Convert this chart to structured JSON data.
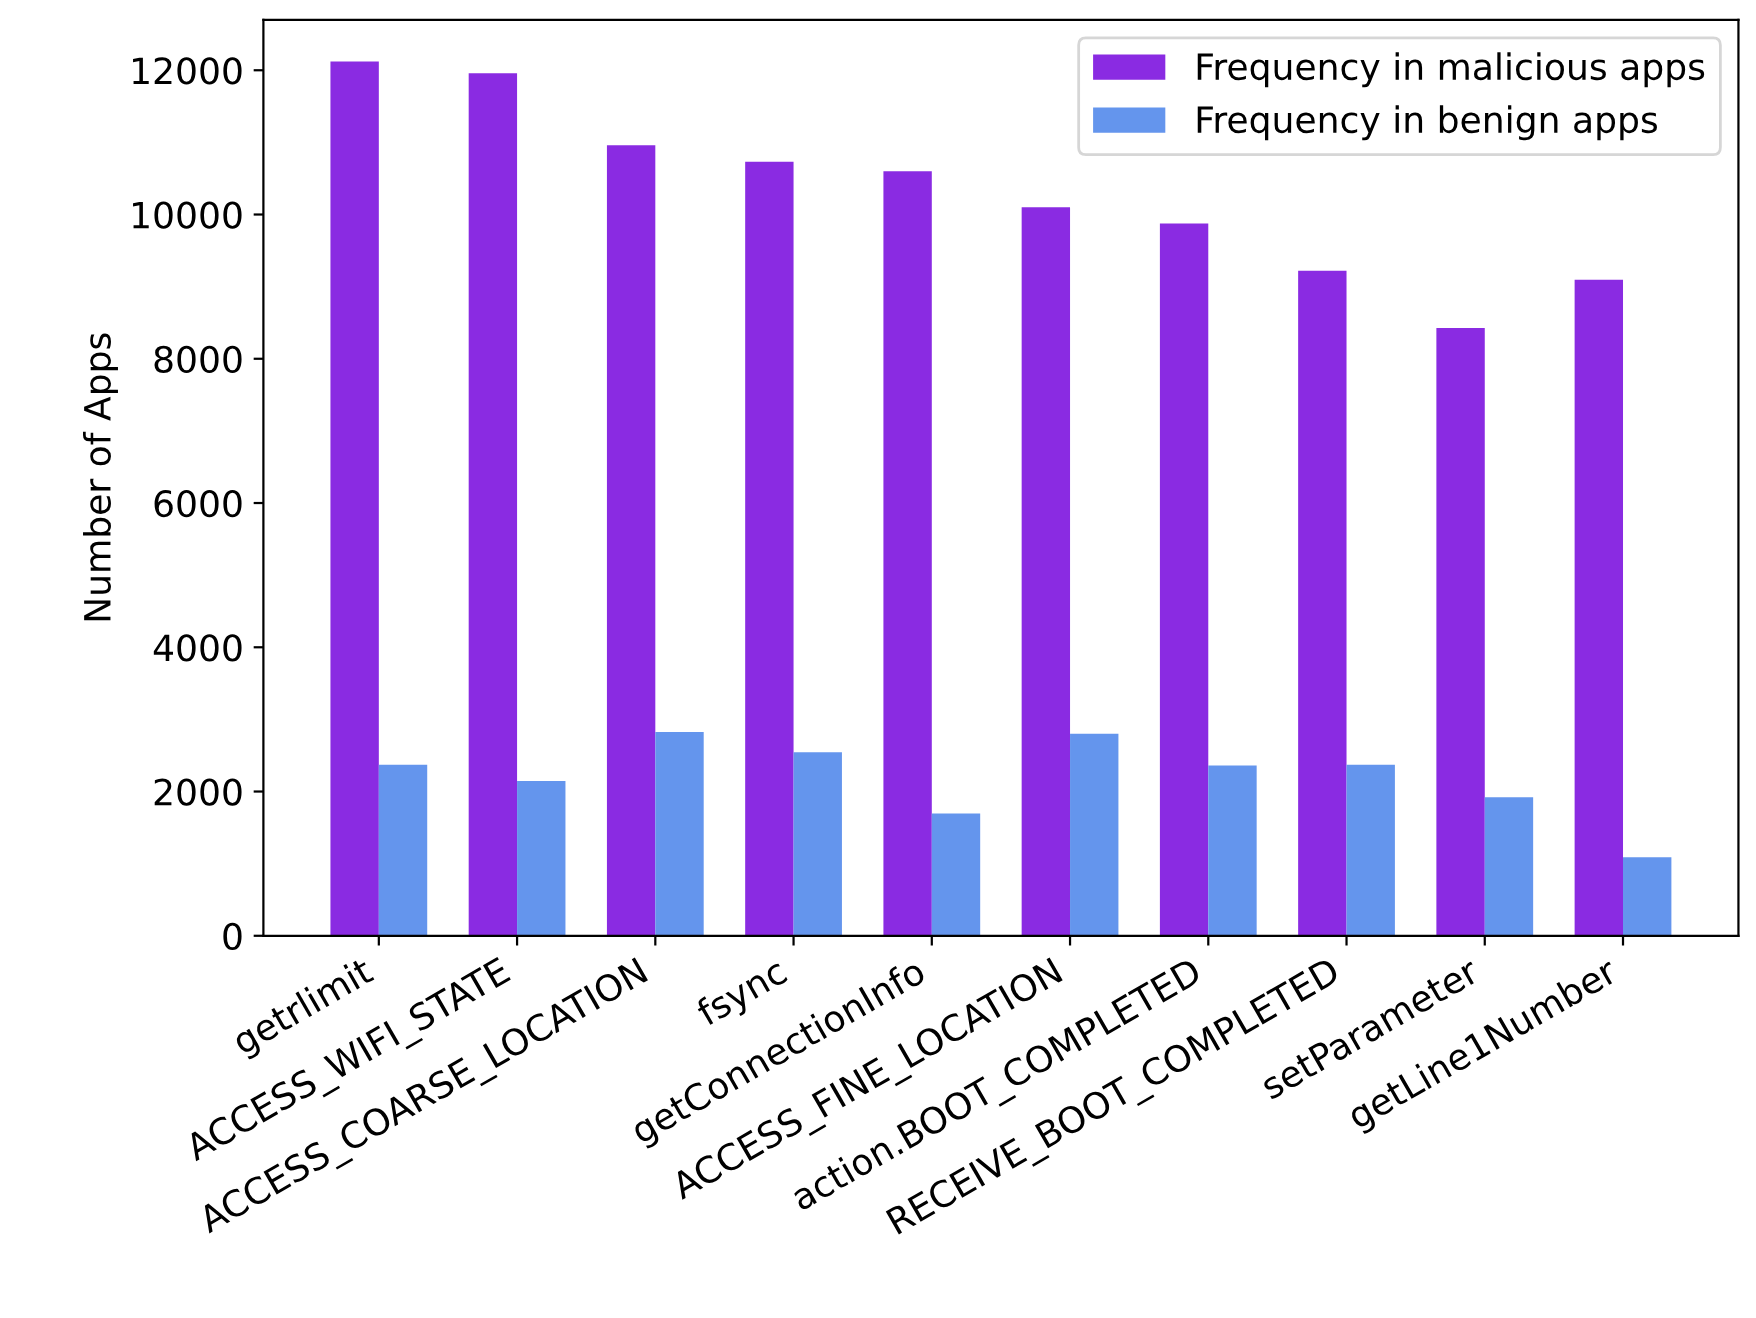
{
  "chart_data": {
    "type": "bar",
    "ylabel": "Number of Apps",
    "categories": [
      "getrlimit",
      "ACCESS_WIFI_STATE",
      "ACCESS_COARSE_LOCATION",
      "fsync",
      "getConnectionInfo",
      "ACCESS_FINE_LOCATION",
      "action.BOOT_COMPLETED",
      "RECEIVE_BOOT_COMPLETED",
      "setParameter",
      "getLine1Number"
    ],
    "series": [
      {
        "name": "Frequency in malicious apps",
        "color": "#8a2be2",
        "values": [
          12120,
          11960,
          10960,
          10730,
          10600,
          10100,
          9875,
          9220,
          8425,
          9095
        ]
      },
      {
        "name": "Frequency in benign apps",
        "color": "#6495ed",
        "values": [
          2370,
          2145,
          2825,
          2545,
          1695,
          2800,
          2360,
          2370,
          1920,
          1090
        ]
      }
    ],
    "ylim": [
      0,
      12700
    ],
    "yticks": [
      0,
      2000,
      4000,
      6000,
      8000,
      10000,
      12000
    ],
    "legend": "top right",
    "grid": false
  }
}
